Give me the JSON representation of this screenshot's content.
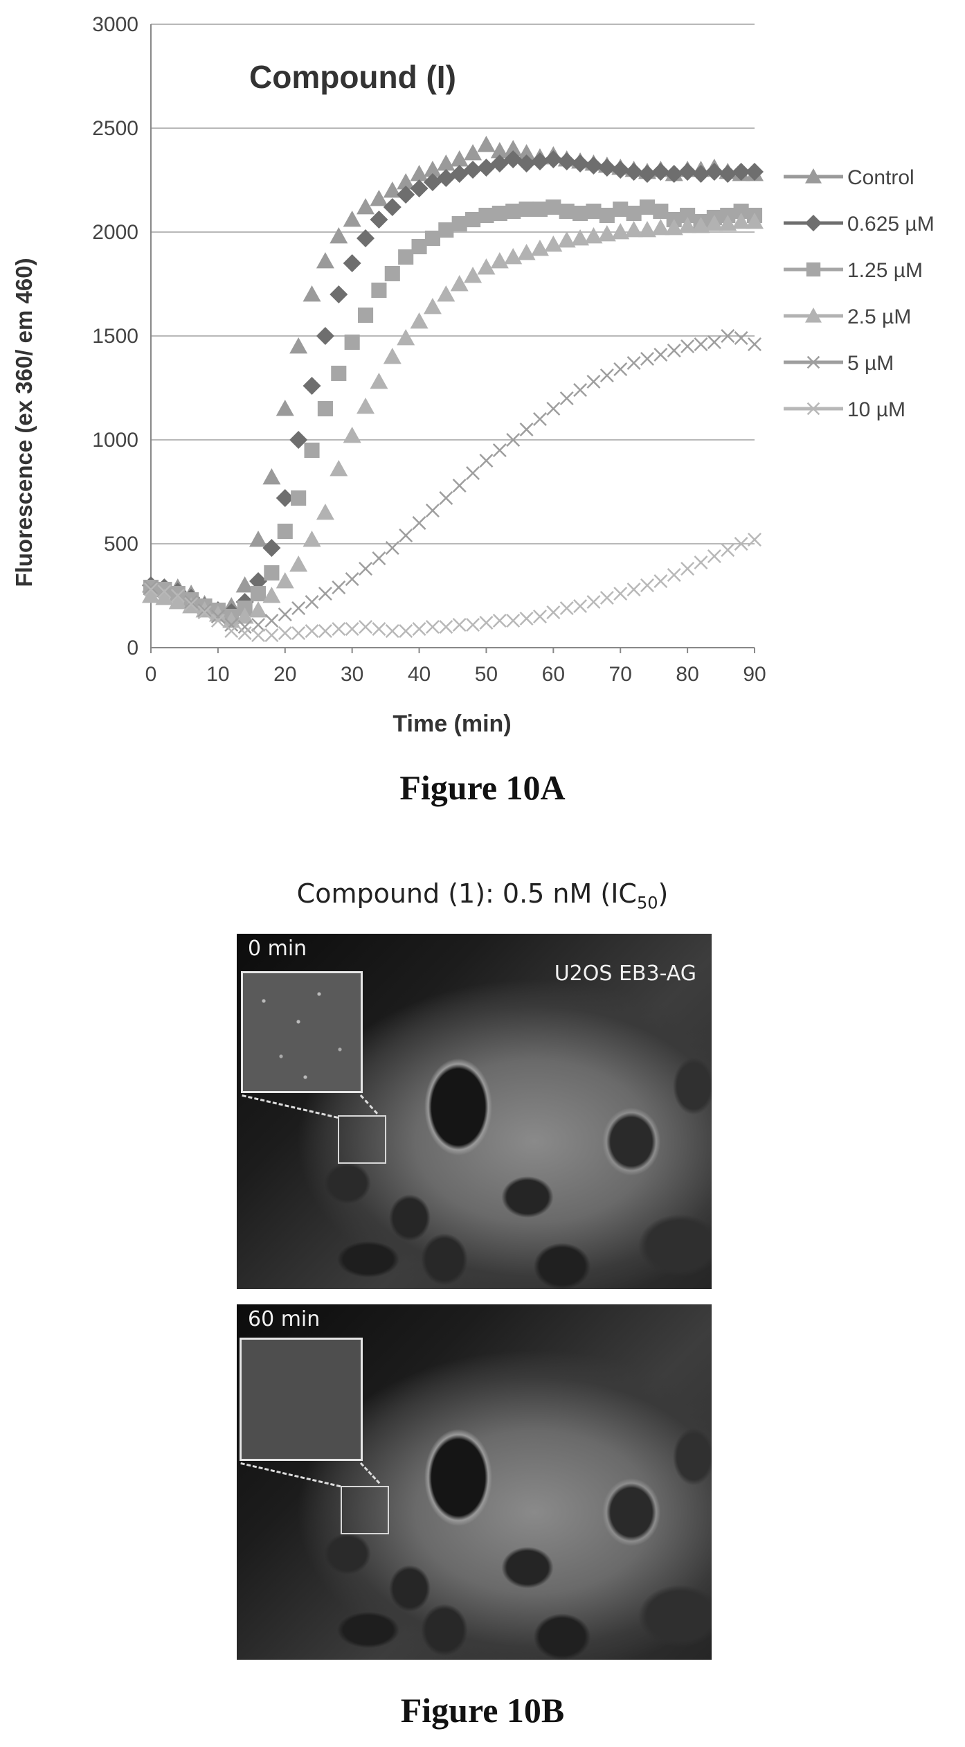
{
  "chart_data": {
    "type": "scatter",
    "title": "Compound (I)",
    "xlabel": "Time (min)",
    "ylabel": "Fluorescence (ex 360/ em 460)",
    "xlim": [
      0,
      90
    ],
    "ylim": [
      0,
      3000
    ],
    "x_ticks": [
      "0",
      "10",
      "20",
      "30",
      "40",
      "50",
      "60",
      "70",
      "80",
      "90"
    ],
    "y_ticks": [
      "0",
      "500",
      "1000",
      "1500",
      "2000",
      "2500",
      "3000"
    ],
    "grid": true,
    "legend_position": "right",
    "series": [
      {
        "name": "Control",
        "marker": "triangle",
        "color": "#9a9a9a",
        "points": [
          [
            0,
            300
          ],
          [
            2,
            280
          ],
          [
            4,
            290
          ],
          [
            6,
            260
          ],
          [
            8,
            210
          ],
          [
            10,
            180
          ],
          [
            12,
            200
          ],
          [
            14,
            300
          ],
          [
            16,
            520
          ],
          [
            18,
            820
          ],
          [
            20,
            1150
          ],
          [
            22,
            1450
          ],
          [
            24,
            1700
          ],
          [
            26,
            1860
          ],
          [
            28,
            1980
          ],
          [
            30,
            2060
          ],
          [
            32,
            2120
          ],
          [
            34,
            2160
          ],
          [
            36,
            2200
          ],
          [
            38,
            2240
          ],
          [
            40,
            2280
          ],
          [
            42,
            2300
          ],
          [
            44,
            2330
          ],
          [
            46,
            2350
          ],
          [
            48,
            2380
          ],
          [
            50,
            2420
          ],
          [
            52,
            2390
          ],
          [
            54,
            2400
          ],
          [
            56,
            2380
          ],
          [
            58,
            2360
          ],
          [
            60,
            2370
          ],
          [
            62,
            2350
          ],
          [
            64,
            2340
          ],
          [
            66,
            2330
          ],
          [
            68,
            2320
          ],
          [
            70,
            2310
          ],
          [
            72,
            2300
          ],
          [
            74,
            2290
          ],
          [
            76,
            2300
          ],
          [
            78,
            2280
          ],
          [
            80,
            2300
          ],
          [
            82,
            2300
          ],
          [
            84,
            2310
          ],
          [
            86,
            2290
          ],
          [
            88,
            2280
          ],
          [
            90,
            2280
          ]
        ]
      },
      {
        "name": "0.625 µM",
        "marker": "diamond",
        "color": "#6e6e6e",
        "points": [
          [
            0,
            300
          ],
          [
            2,
            290
          ],
          [
            4,
            270
          ],
          [
            6,
            240
          ],
          [
            8,
            200
          ],
          [
            10,
            180
          ],
          [
            12,
            170
          ],
          [
            14,
            220
          ],
          [
            16,
            320
          ],
          [
            18,
            480
          ],
          [
            20,
            720
          ],
          [
            22,
            1000
          ],
          [
            24,
            1260
          ],
          [
            26,
            1500
          ],
          [
            28,
            1700
          ],
          [
            30,
            1850
          ],
          [
            32,
            1970
          ],
          [
            34,
            2060
          ],
          [
            36,
            2120
          ],
          [
            38,
            2180
          ],
          [
            40,
            2210
          ],
          [
            42,
            2240
          ],
          [
            44,
            2260
          ],
          [
            46,
            2280
          ],
          [
            48,
            2300
          ],
          [
            50,
            2310
          ],
          [
            52,
            2330
          ],
          [
            54,
            2350
          ],
          [
            56,
            2330
          ],
          [
            58,
            2340
          ],
          [
            60,
            2350
          ],
          [
            62,
            2340
          ],
          [
            64,
            2330
          ],
          [
            66,
            2320
          ],
          [
            68,
            2310
          ],
          [
            70,
            2300
          ],
          [
            72,
            2290
          ],
          [
            74,
            2280
          ],
          [
            76,
            2290
          ],
          [
            78,
            2280
          ],
          [
            80,
            2290
          ],
          [
            82,
            2280
          ],
          [
            84,
            2290
          ],
          [
            86,
            2280
          ],
          [
            88,
            2290
          ],
          [
            90,
            2290
          ]
        ]
      },
      {
        "name": "1.25 µM",
        "marker": "square",
        "color": "#a6a6a6",
        "points": [
          [
            0,
            290
          ],
          [
            2,
            280
          ],
          [
            4,
            260
          ],
          [
            6,
            230
          ],
          [
            8,
            200
          ],
          [
            10,
            180
          ],
          [
            12,
            150
          ],
          [
            14,
            190
          ],
          [
            16,
            260
          ],
          [
            18,
            360
          ],
          [
            20,
            560
          ],
          [
            22,
            720
          ],
          [
            24,
            950
          ],
          [
            26,
            1150
          ],
          [
            28,
            1320
          ],
          [
            30,
            1470
          ],
          [
            32,
            1600
          ],
          [
            34,
            1720
          ],
          [
            36,
            1800
          ],
          [
            38,
            1880
          ],
          [
            40,
            1930
          ],
          [
            42,
            1970
          ],
          [
            44,
            2010
          ],
          [
            46,
            2040
          ],
          [
            48,
            2060
          ],
          [
            50,
            2080
          ],
          [
            52,
            2090
          ],
          [
            54,
            2100
          ],
          [
            56,
            2110
          ],
          [
            58,
            2110
          ],
          [
            60,
            2120
          ],
          [
            62,
            2100
          ],
          [
            64,
            2090
          ],
          [
            66,
            2100
          ],
          [
            68,
            2080
          ],
          [
            70,
            2110
          ],
          [
            72,
            2090
          ],
          [
            74,
            2120
          ],
          [
            76,
            2100
          ],
          [
            78,
            2060
          ],
          [
            80,
            2080
          ],
          [
            82,
            2050
          ],
          [
            84,
            2070
          ],
          [
            86,
            2080
          ],
          [
            88,
            2100
          ],
          [
            90,
            2080
          ]
        ]
      },
      {
        "name": "2.5 µM",
        "marker": "triangle",
        "color": "#b2b2b2",
        "points": [
          [
            0,
            250
          ],
          [
            2,
            240
          ],
          [
            4,
            220
          ],
          [
            6,
            200
          ],
          [
            8,
            180
          ],
          [
            10,
            160
          ],
          [
            12,
            130
          ],
          [
            14,
            150
          ],
          [
            16,
            180
          ],
          [
            18,
            250
          ],
          [
            20,
            320
          ],
          [
            22,
            400
          ],
          [
            24,
            520
          ],
          [
            26,
            650
          ],
          [
            28,
            860
          ],
          [
            30,
            1020
          ],
          [
            32,
            1160
          ],
          [
            34,
            1280
          ],
          [
            36,
            1400
          ],
          [
            38,
            1490
          ],
          [
            40,
            1570
          ],
          [
            42,
            1640
          ],
          [
            44,
            1700
          ],
          [
            46,
            1750
          ],
          [
            48,
            1790
          ],
          [
            50,
            1830
          ],
          [
            52,
            1860
          ],
          [
            54,
            1880
          ],
          [
            56,
            1900
          ],
          [
            58,
            1920
          ],
          [
            60,
            1940
          ],
          [
            62,
            1960
          ],
          [
            64,
            1970
          ],
          [
            66,
            1980
          ],
          [
            68,
            1990
          ],
          [
            70,
            2000
          ],
          [
            72,
            2010
          ],
          [
            74,
            2010
          ],
          [
            76,
            2020
          ],
          [
            78,
            2020
          ],
          [
            80,
            2030
          ],
          [
            82,
            2030
          ],
          [
            84,
            2040
          ],
          [
            86,
            2040
          ],
          [
            88,
            2050
          ],
          [
            90,
            2050
          ]
        ]
      },
      {
        "name": "5 µM",
        "marker": "x",
        "color": "#9e9e9e",
        "points": [
          [
            0,
            290
          ],
          [
            2,
            270
          ],
          [
            4,
            250
          ],
          [
            6,
            220
          ],
          [
            8,
            180
          ],
          [
            10,
            150
          ],
          [
            12,
            110
          ],
          [
            14,
            100
          ],
          [
            16,
            110
          ],
          [
            18,
            130
          ],
          [
            20,
            160
          ],
          [
            22,
            190
          ],
          [
            24,
            220
          ],
          [
            26,
            260
          ],
          [
            28,
            290
          ],
          [
            30,
            330
          ],
          [
            32,
            380
          ],
          [
            34,
            430
          ],
          [
            36,
            480
          ],
          [
            38,
            540
          ],
          [
            40,
            600
          ],
          [
            42,
            660
          ],
          [
            44,
            720
          ],
          [
            46,
            780
          ],
          [
            48,
            840
          ],
          [
            50,
            900
          ],
          [
            52,
            950
          ],
          [
            54,
            1000
          ],
          [
            56,
            1050
          ],
          [
            58,
            1100
          ],
          [
            60,
            1150
          ],
          [
            62,
            1200
          ],
          [
            64,
            1240
          ],
          [
            66,
            1280
          ],
          [
            68,
            1310
          ],
          [
            70,
            1340
          ],
          [
            72,
            1370
          ],
          [
            74,
            1390
          ],
          [
            76,
            1410
          ],
          [
            78,
            1430
          ],
          [
            80,
            1450
          ],
          [
            82,
            1460
          ],
          [
            84,
            1470
          ],
          [
            86,
            1500
          ],
          [
            88,
            1490
          ],
          [
            90,
            1460
          ]
        ]
      },
      {
        "name": "10 µM",
        "marker": "x",
        "color": "#b8b8b8",
        "points": [
          [
            0,
            280
          ],
          [
            2,
            270
          ],
          [
            4,
            250
          ],
          [
            6,
            210
          ],
          [
            8,
            170
          ],
          [
            10,
            130
          ],
          [
            12,
            80
          ],
          [
            14,
            70
          ],
          [
            16,
            60
          ],
          [
            18,
            60
          ],
          [
            20,
            70
          ],
          [
            22,
            70
          ],
          [
            24,
            80
          ],
          [
            26,
            80
          ],
          [
            28,
            90
          ],
          [
            30,
            90
          ],
          [
            32,
            100
          ],
          [
            34,
            90
          ],
          [
            36,
            80
          ],
          [
            38,
            80
          ],
          [
            40,
            90
          ],
          [
            42,
            100
          ],
          [
            44,
            100
          ],
          [
            46,
            110
          ],
          [
            48,
            110
          ],
          [
            50,
            120
          ],
          [
            52,
            130
          ],
          [
            54,
            130
          ],
          [
            56,
            140
          ],
          [
            58,
            150
          ],
          [
            60,
            170
          ],
          [
            62,
            190
          ],
          [
            64,
            200
          ],
          [
            66,
            220
          ],
          [
            68,
            240
          ],
          [
            70,
            260
          ],
          [
            72,
            280
          ],
          [
            74,
            300
          ],
          [
            76,
            320
          ],
          [
            78,
            350
          ],
          [
            80,
            380
          ],
          [
            82,
            410
          ],
          [
            84,
            440
          ],
          [
            86,
            470
          ],
          [
            88,
            500
          ],
          [
            90,
            520
          ]
        ]
      }
    ]
  },
  "figure_a_caption": "Figure 10A",
  "figure_b_caption": "Figure 10B",
  "figure_b_title_main": "Compound (1): 0.5 nM (IC",
  "figure_b_title_sub": "50",
  "figure_b_title_end": ")",
  "panel_top_time": "0 min",
  "panel_top_cell_line": "U2OS EB3-AG",
  "panel_bottom_time": "60 min"
}
